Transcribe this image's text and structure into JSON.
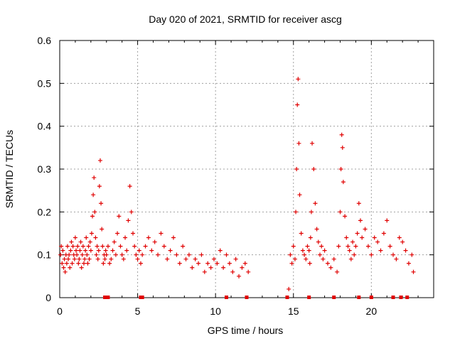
{
  "chart_data": {
    "type": "scatter",
    "title": "Day 020 of 2021, SRMTID for receiver ascg",
    "xlabel": "GPS time / hours",
    "ylabel": "SRMTID / TECUs",
    "xlim": [
      0,
      24
    ],
    "ylim": [
      0,
      0.6
    ],
    "xticks": [
      "0",
      "5",
      "10",
      "15",
      "20"
    ],
    "yticks": [
      "0",
      "0.1",
      "0.2",
      "0.3",
      "0.4",
      "0.5",
      "0.6"
    ],
    "grid": true,
    "marker": "+",
    "color": "#e00000",
    "series": [
      {
        "name": "SRMTID",
        "x": [
          0.05,
          0.1,
          0.15,
          0.2,
          0.25,
          0.3,
          0.35,
          0.4,
          0.45,
          0.5,
          0.55,
          0.6,
          0.65,
          0.7,
          0.75,
          0.8,
          0.85,
          0.9,
          0.95,
          1.0,
          1.05,
          1.1,
          1.15,
          1.2,
          1.25,
          1.3,
          1.35,
          1.4,
          1.45,
          1.5,
          1.55,
          1.6,
          1.65,
          1.7,
          1.75,
          1.8,
          1.85,
          1.9,
          1.95,
          2.0,
          2.05,
          2.1,
          2.15,
          2.2,
          2.25,
          2.3,
          2.35,
          2.4,
          2.45,
          2.5,
          2.55,
          2.6,
          2.65,
          2.7,
          2.75,
          2.8,
          2.85,
          2.9,
          2.95,
          3.0,
          3.1,
          3.2,
          3.3,
          3.4,
          3.5,
          3.6,
          3.7,
          3.8,
          3.9,
          4.0,
          4.1,
          4.2,
          4.3,
          4.4,
          4.5,
          4.6,
          4.7,
          4.8,
          4.9,
          5.0,
          5.1,
          5.2,
          5.3,
          5.5,
          5.7,
          5.9,
          6.1,
          6.3,
          6.5,
          6.7,
          6.9,
          7.1,
          7.3,
          7.5,
          7.7,
          7.9,
          8.1,
          8.3,
          8.5,
          8.7,
          8.9,
          9.1,
          9.3,
          9.5,
          9.7,
          9.9,
          10.1,
          10.3,
          10.5,
          10.7,
          10.9,
          11.1,
          11.3,
          11.5,
          11.7,
          11.9,
          12.1,
          14.7,
          14.8,
          14.9,
          15.0,
          15.1,
          15.15,
          15.2,
          15.25,
          15.3,
          15.35,
          15.4,
          15.5,
          15.6,
          15.7,
          15.8,
          15.9,
          16.0,
          16.05,
          16.1,
          16.15,
          16.2,
          16.3,
          16.4,
          16.5,
          16.6,
          16.7,
          16.8,
          16.9,
          17.0,
          17.2,
          17.4,
          17.6,
          17.8,
          17.9,
          18.0,
          18.05,
          18.1,
          18.15,
          18.2,
          18.3,
          18.4,
          18.5,
          18.6,
          18.7,
          18.8,
          18.9,
          19.0,
          19.1,
          19.2,
          19.3,
          19.4,
          19.6,
          19.8,
          20.0,
          20.2,
          20.4,
          20.6,
          20.8,
          21.0,
          21.2,
          21.4,
          21.6,
          21.8,
          22.0,
          22.2,
          22.4,
          22.6,
          22.7
        ],
        "y": [
          0.1,
          0.12,
          0.08,
          0.11,
          0.07,
          0.09,
          0.06,
          0.1,
          0.08,
          0.12,
          0.09,
          0.1,
          0.07,
          0.11,
          0.13,
          0.08,
          0.12,
          0.1,
          0.09,
          0.14,
          0.11,
          0.1,
          0.12,
          0.08,
          0.09,
          0.11,
          0.13,
          0.07,
          0.1,
          0.12,
          0.08,
          0.09,
          0.11,
          0.14,
          0.1,
          0.08,
          0.12,
          0.09,
          0.13,
          0.11,
          0.15,
          0.19,
          0.24,
          0.28,
          0.2,
          0.14,
          0.1,
          0.12,
          0.09,
          0.11,
          0.26,
          0.32,
          0.22,
          0.16,
          0.12,
          0.08,
          0.1,
          0.09,
          0.11,
          0.1,
          0.12,
          0.08,
          0.09,
          0.11,
          0.13,
          0.1,
          0.15,
          0.19,
          0.12,
          0.1,
          0.09,
          0.14,
          0.11,
          0.18,
          0.26,
          0.2,
          0.15,
          0.12,
          0.1,
          0.09,
          0.11,
          0.08,
          0.1,
          0.12,
          0.14,
          0.11,
          0.13,
          0.1,
          0.15,
          0.12,
          0.09,
          0.11,
          0.14,
          0.1,
          0.08,
          0.12,
          0.09,
          0.1,
          0.07,
          0.09,
          0.08,
          0.1,
          0.06,
          0.08,
          0.07,
          0.09,
          0.08,
          0.11,
          0.07,
          0.1,
          0.08,
          0.06,
          0.09,
          0.05,
          0.07,
          0.08,
          0.06,
          0.02,
          0.1,
          0.08,
          0.12,
          0.09,
          0.2,
          0.3,
          0.45,
          0.51,
          0.36,
          0.24,
          0.15,
          0.11,
          0.1,
          0.09,
          0.12,
          0.11,
          0.08,
          0.14,
          0.2,
          0.36,
          0.3,
          0.22,
          0.16,
          0.13,
          0.1,
          0.12,
          0.09,
          0.11,
          0.08,
          0.07,
          0.09,
          0.06,
          0.12,
          0.2,
          0.3,
          0.38,
          0.35,
          0.27,
          0.19,
          0.14,
          0.12,
          0.11,
          0.09,
          0.13,
          0.1,
          0.12,
          0.15,
          0.22,
          0.18,
          0.14,
          0.16,
          0.12,
          0.1,
          0.14,
          0.13,
          0.11,
          0.15,
          0.18,
          0.12,
          0.1,
          0.09,
          0.14,
          0.13,
          0.11,
          0.08,
          0.1,
          0.06
        ],
        "values": [
          0.1,
          0.12,
          0.08,
          0.11,
          0.07,
          0.09,
          0.06,
          0.1,
          0.08,
          0.12,
          0.09,
          0.1,
          0.07,
          0.11,
          0.13,
          0.08,
          0.12,
          0.1,
          0.09,
          0.14,
          0.11,
          0.1,
          0.12,
          0.08,
          0.09,
          0.11,
          0.13,
          0.07,
          0.1,
          0.12,
          0.08,
          0.09,
          0.11,
          0.14,
          0.1,
          0.08,
          0.12,
          0.09,
          0.13,
          0.11,
          0.15,
          0.19,
          0.24,
          0.28,
          0.2,
          0.14,
          0.1,
          0.12,
          0.09,
          0.11,
          0.26,
          0.32,
          0.22,
          0.16,
          0.12,
          0.08,
          0.1,
          0.09,
          0.11,
          0.1,
          0.12,
          0.08,
          0.09,
          0.11,
          0.13,
          0.1,
          0.15,
          0.19,
          0.12,
          0.1,
          0.09,
          0.14,
          0.11,
          0.18,
          0.26,
          0.2,
          0.15,
          0.12,
          0.1,
          0.09,
          0.11,
          0.08,
          0.1,
          0.12,
          0.14,
          0.11,
          0.13,
          0.1,
          0.15,
          0.12,
          0.09,
          0.11,
          0.14,
          0.1,
          0.08,
          0.12,
          0.09,
          0.1,
          0.07,
          0.09,
          0.08,
          0.1,
          0.06,
          0.08,
          0.07,
          0.09,
          0.08,
          0.11,
          0.07,
          0.1,
          0.08,
          0.06,
          0.09,
          0.05,
          0.07,
          0.08,
          0.06,
          0.02,
          0.1,
          0.08,
          0.12,
          0.09,
          0.2,
          0.3,
          0.45,
          0.51,
          0.36,
          0.24,
          0.15,
          0.11,
          0.1,
          0.09,
          0.12,
          0.11,
          0.08,
          0.14,
          0.2,
          0.36,
          0.3,
          0.22,
          0.16,
          0.13,
          0.1,
          0.12,
          0.09,
          0.11,
          0.08,
          0.07,
          0.09,
          0.06,
          0.12,
          0.2,
          0.3,
          0.38,
          0.35,
          0.27,
          0.19,
          0.14,
          0.12,
          0.11,
          0.09,
          0.13,
          0.1,
          0.12,
          0.15,
          0.22,
          0.18,
          0.14,
          0.16,
          0.12,
          0.1,
          0.14,
          0.13,
          0.11,
          0.15,
          0.18,
          0.12,
          0.1,
          0.09,
          0.14,
          0.13,
          0.11,
          0.08,
          0.1,
          0.06
        ]
      }
    ],
    "gap_markers_x": [
      2.9,
      3.0,
      3.1,
      5.2,
      5.3,
      10.7,
      12.0,
      14.6,
      16.0,
      17.6,
      19.2,
      20.0,
      21.4,
      21.9,
      22.3
    ]
  }
}
